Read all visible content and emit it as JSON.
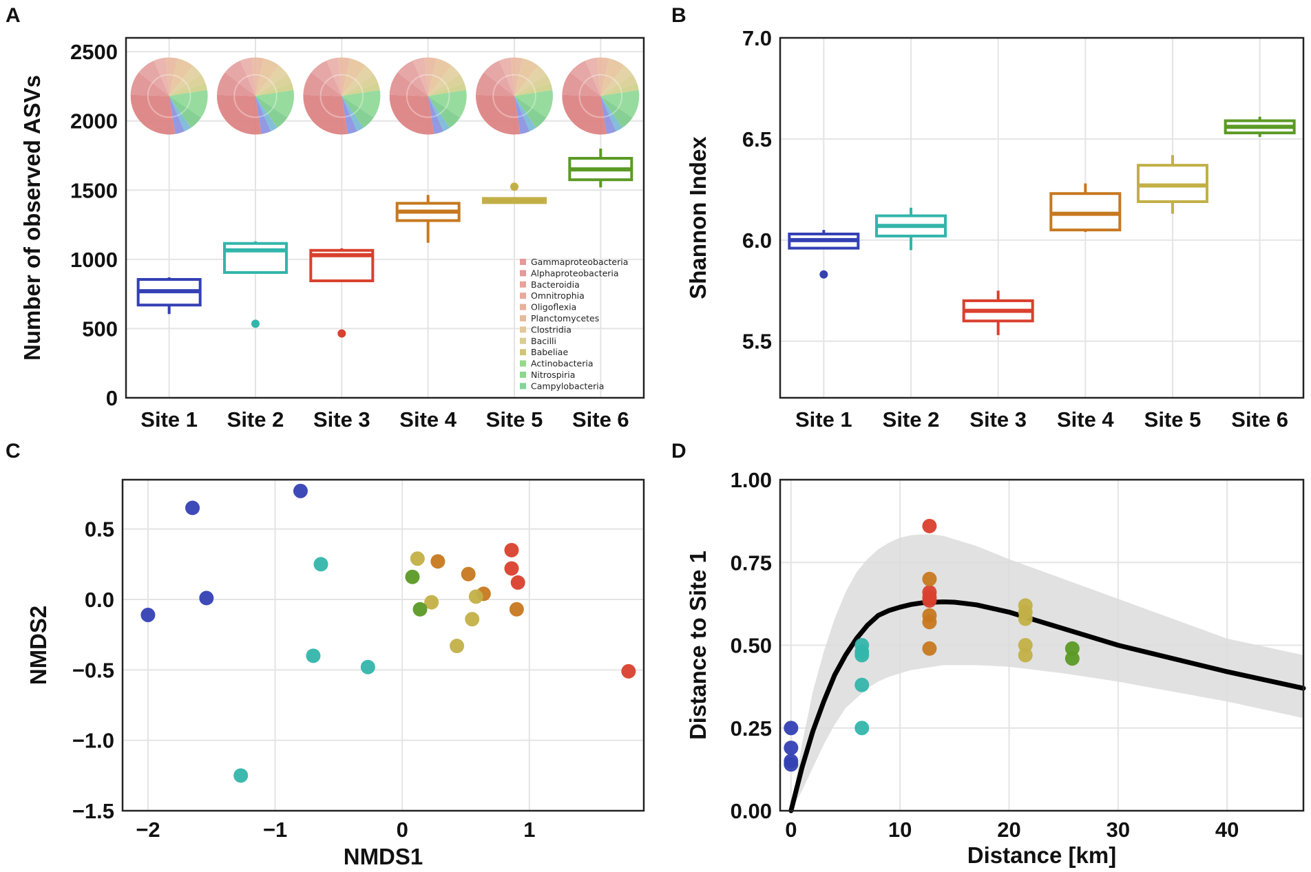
{
  "panels": {
    "a": "A",
    "b": "B",
    "c": "C",
    "d": "D"
  },
  "colors": {
    "site1": "#3440b4",
    "site2": "#33b5ab",
    "site3": "#d9402d",
    "site4": "#c7781f",
    "site5": "#c2b047",
    "site6": "#5b9a25"
  },
  "chart_data": [
    {
      "id": "A",
      "type": "box",
      "title": "",
      "xlabel": "",
      "ylabel": "Number of observed ASVs",
      "ylim": [
        0,
        2600
      ],
      "yticks": [
        0,
        500,
        1000,
        1500,
        2000,
        2500
      ],
      "categories": [
        "Site 1",
        "Site 2",
        "Site 3",
        "Site 4",
        "Site 5",
        "Site 6"
      ],
      "boxes": [
        {
          "q1": 670,
          "median": 770,
          "q3": 855,
          "wlow": 605,
          "whigh": 870,
          "outliers": []
        },
        {
          "q1": 905,
          "median": 1065,
          "q3": 1115,
          "wlow": 905,
          "whigh": 1130,
          "outliers": [
            535
          ]
        },
        {
          "q1": 845,
          "median": 1030,
          "q3": 1065,
          "wlow": 845,
          "whigh": 1080,
          "outliers": [
            465
          ]
        },
        {
          "q1": 1280,
          "median": 1345,
          "q3": 1405,
          "wlow": 1120,
          "whigh": 1465,
          "outliers": []
        },
        {
          "q1": 1410,
          "median": 1425,
          "q3": 1440,
          "wlow": 1410,
          "whigh": 1440,
          "outliers": [
            1525
          ]
        },
        {
          "q1": 1575,
          "median": 1650,
          "q3": 1730,
          "wlow": 1520,
          "whigh": 1800,
          "outliers": []
        }
      ],
      "pie_slices": [
        {
          "name": "Gammaproteobacteria",
          "value": 28,
          "color": "#dc8080"
        },
        {
          "name": "Alphaproteobacteria",
          "value": 10,
          "color": "#e09090"
        },
        {
          "name": "Bacteroidia",
          "value": 8,
          "color": "#e4a0a0"
        },
        {
          "name": "Omnitrophia",
          "value": 5,
          "color": "#e8b0a8"
        },
        {
          "name": "Oligoflexia",
          "value": 5,
          "color": "#e8b8a0"
        },
        {
          "name": "Planctomycetes",
          "value": 7,
          "color": "#e6c49c"
        },
        {
          "name": "Clostridia",
          "value": 5,
          "color": "#e2cf9e"
        },
        {
          "name": "Bacilli",
          "value": 4,
          "color": "#d8cf92"
        },
        {
          "name": "Babeliae",
          "value": 3,
          "color": "#cfd08a"
        },
        {
          "name": "Actinobacteria",
          "value": 12,
          "color": "#8fd896"
        },
        {
          "name": "Nitrospiria",
          "value": 6,
          "color": "#7ccc8c"
        },
        {
          "name": "Campylobacteria",
          "value": 3,
          "color": "#7ab8d8"
        },
        {
          "name": "",
          "value": 4,
          "color": "#8a90e0"
        }
      ],
      "legend": [
        {
          "label": "Gammaproteobacteria",
          "color": "#e29a9a"
        },
        {
          "label": "Alphaproteobacteria",
          "color": "#e29a9a"
        },
        {
          "label": "Bacteroidia",
          "color": "#e5a39b"
        },
        {
          "label": "Omnitrophia",
          "color": "#e6ab9c"
        },
        {
          "label": "Oligoflexia",
          "color": "#e6b19c"
        },
        {
          "label": "Planctomycetes",
          "color": "#e6bb9c"
        },
        {
          "label": "Clostridia",
          "color": "#e2c79c"
        },
        {
          "label": "Bacilli",
          "color": "#d9cc94"
        },
        {
          "label": "Babeliae",
          "color": "#cdc67a"
        },
        {
          "label": "Actinobacteria",
          "color": "#95d98a"
        },
        {
          "label": "Nitrospiria",
          "color": "#8ed78e"
        },
        {
          "label": "Campylobacteria",
          "color": "#84d49a"
        }
      ]
    },
    {
      "id": "B",
      "type": "box",
      "title": "",
      "xlabel": "",
      "ylabel": "Shannon Index",
      "ylim": [
        5.22,
        7.0
      ],
      "yticks": [
        5.5,
        6.0,
        6.5,
        7.0
      ],
      "ytick_labels": [
        "5.5",
        "6.0",
        "6.5",
        "7.0"
      ],
      "categories": [
        "Site 1",
        "Site 2",
        "Site 3",
        "Site 4",
        "Site 5",
        "Site 6"
      ],
      "boxes": [
        {
          "q1": 5.96,
          "median": 6.0,
          "q3": 6.03,
          "wlow": 5.96,
          "whigh": 6.05,
          "outliers": [
            5.83
          ]
        },
        {
          "q1": 6.02,
          "median": 6.07,
          "q3": 6.12,
          "wlow": 5.95,
          "whigh": 6.16,
          "outliers": []
        },
        {
          "q1": 5.6,
          "median": 5.65,
          "q3": 5.7,
          "wlow": 5.53,
          "whigh": 5.75,
          "outliers": []
        },
        {
          "q1": 6.05,
          "median": 6.13,
          "q3": 6.23,
          "wlow": 6.04,
          "whigh": 6.28,
          "outliers": []
        },
        {
          "q1": 6.19,
          "median": 6.27,
          "q3": 6.37,
          "wlow": 6.13,
          "whigh": 6.42,
          "outliers": []
        },
        {
          "q1": 6.53,
          "median": 6.56,
          "q3": 6.59,
          "wlow": 6.51,
          "whigh": 6.61,
          "outliers": []
        }
      ]
    },
    {
      "id": "C",
      "type": "scatter",
      "title": "",
      "xlabel": "NMDS1",
      "ylabel": "NMDS2",
      "xlim": [
        -2.2,
        1.9
      ],
      "ylim": [
        -1.5,
        0.85
      ],
      "xticks": [
        -2,
        -1,
        0,
        1
      ],
      "xtick_labels": [
        "−2",
        "−1",
        "0",
        "1"
      ],
      "yticks": [
        -1.5,
        -1.0,
        -0.5,
        0.0,
        0.5
      ],
      "ytick_labels": [
        "−1.5",
        "−1.0",
        "−0.5",
        "0.0",
        "0.5"
      ],
      "points": [
        {
          "site": 1,
          "x": -2.0,
          "y": -0.11
        },
        {
          "site": 1,
          "x": -1.65,
          "y": 0.65
        },
        {
          "site": 1,
          "x": -1.54,
          "y": 0.01
        },
        {
          "site": 1,
          "x": -0.8,
          "y": 0.77
        },
        {
          "site": 2,
          "x": -0.64,
          "y": 0.25
        },
        {
          "site": 2,
          "x": -0.7,
          "y": -0.4
        },
        {
          "site": 2,
          "x": -0.27,
          "y": -0.48
        },
        {
          "site": 2,
          "x": -1.27,
          "y": -1.25
        },
        {
          "site": 3,
          "x": 0.86,
          "y": 0.35
        },
        {
          "site": 3,
          "x": 0.86,
          "y": 0.22
        },
        {
          "site": 3,
          "x": 0.91,
          "y": 0.12
        },
        {
          "site": 3,
          "x": 1.78,
          "y": -0.51
        },
        {
          "site": 4,
          "x": 0.28,
          "y": 0.27
        },
        {
          "site": 4,
          "x": 0.52,
          "y": 0.18
        },
        {
          "site": 4,
          "x": 0.64,
          "y": 0.04
        },
        {
          "site": 4,
          "x": 0.9,
          "y": -0.07
        },
        {
          "site": 5,
          "x": 0.12,
          "y": 0.29
        },
        {
          "site": 5,
          "x": 0.23,
          "y": -0.02
        },
        {
          "site": 5,
          "x": 0.58,
          "y": 0.02
        },
        {
          "site": 5,
          "x": 0.55,
          "y": -0.14
        },
        {
          "site": 5,
          "x": 0.43,
          "y": -0.33
        },
        {
          "site": 6,
          "x": 0.08,
          "y": 0.16
        },
        {
          "site": 6,
          "x": 0.14,
          "y": -0.07
        }
      ]
    },
    {
      "id": "D",
      "type": "scatter",
      "title": "",
      "xlabel": "Distance [km]",
      "ylabel": "Distance to Site 1",
      "xlim": [
        -1,
        47
      ],
      "ylim": [
        0,
        1.0
      ],
      "xticks": [
        0,
        10,
        20,
        30,
        40
      ],
      "xtick_labels": [
        "0",
        "10",
        "20",
        "30",
        "40"
      ],
      "yticks": [
        0,
        0.25,
        0.5,
        0.75,
        1.0
      ],
      "ytick_labels": [
        "0.00",
        "0.25",
        "0.50",
        "0.75",
        "1.00"
      ],
      "fit_line": {
        "x": [
          0,
          1,
          2,
          3,
          4,
          5,
          6,
          7,
          8,
          9,
          10,
          11,
          12,
          13,
          14,
          15,
          17,
          20,
          25,
          30,
          35,
          40,
          47
        ],
        "y": [
          0,
          0.13,
          0.24,
          0.33,
          0.41,
          0.47,
          0.52,
          0.56,
          0.59,
          0.605,
          0.615,
          0.623,
          0.628,
          0.63,
          0.631,
          0.63,
          0.622,
          0.6,
          0.55,
          0.5,
          0.46,
          0.42,
          0.37
        ]
      },
      "ci_band": {
        "x": [
          0,
          1,
          2,
          3,
          4,
          5,
          6,
          7,
          8,
          9,
          10,
          11,
          12,
          13,
          14,
          15,
          17,
          20,
          25,
          30,
          35,
          40,
          47
        ],
        "lower": [
          0,
          0.06,
          0.13,
          0.2,
          0.26,
          0.31,
          0.34,
          0.37,
          0.39,
          0.405,
          0.415,
          0.425,
          0.43,
          0.435,
          0.44,
          0.44,
          0.44,
          0.435,
          0.415,
          0.39,
          0.36,
          0.33,
          0.28
        ],
        "upper": [
          0,
          0.2,
          0.36,
          0.48,
          0.58,
          0.66,
          0.72,
          0.76,
          0.79,
          0.81,
          0.825,
          0.832,
          0.835,
          0.835,
          0.83,
          0.82,
          0.8,
          0.76,
          0.7,
          0.64,
          0.58,
          0.52,
          0.47
        ]
      },
      "points": [
        {
          "site": 1,
          "x": 0,
          "y": 0.25
        },
        {
          "site": 1,
          "x": 0,
          "y": 0.19
        },
        {
          "site": 1,
          "x": 0,
          "y": 0.15
        },
        {
          "site": 1,
          "x": 0,
          "y": 0.14
        },
        {
          "site": 2,
          "x": 6.5,
          "y": 0.5
        },
        {
          "site": 2,
          "x": 6.5,
          "y": 0.48
        },
        {
          "site": 2,
          "x": 6.5,
          "y": 0.47
        },
        {
          "site": 2,
          "x": 6.5,
          "y": 0.38
        },
        {
          "site": 2,
          "x": 6.5,
          "y": 0.25
        },
        {
          "site": 3,
          "x": 12.7,
          "y": 0.86
        },
        {
          "site": 3,
          "x": 12.7,
          "y": 0.66
        },
        {
          "site": 3,
          "x": 12.7,
          "y": 0.645
        },
        {
          "site": 3,
          "x": 12.7,
          "y": 0.635
        },
        {
          "site": 4,
          "x": 12.7,
          "y": 0.7
        },
        {
          "site": 4,
          "x": 12.7,
          "y": 0.59
        },
        {
          "site": 4,
          "x": 12.7,
          "y": 0.57
        },
        {
          "site": 4,
          "x": 12.7,
          "y": 0.49
        },
        {
          "site": 5,
          "x": 21.5,
          "y": 0.62
        },
        {
          "site": 5,
          "x": 21.5,
          "y": 0.6
        },
        {
          "site": 5,
          "x": 21.5,
          "y": 0.58
        },
        {
          "site": 5,
          "x": 21.5,
          "y": 0.5
        },
        {
          "site": 5,
          "x": 21.5,
          "y": 0.47
        },
        {
          "site": 6,
          "x": 25.8,
          "y": 0.49
        },
        {
          "site": 6,
          "x": 25.8,
          "y": 0.46
        }
      ]
    }
  ]
}
